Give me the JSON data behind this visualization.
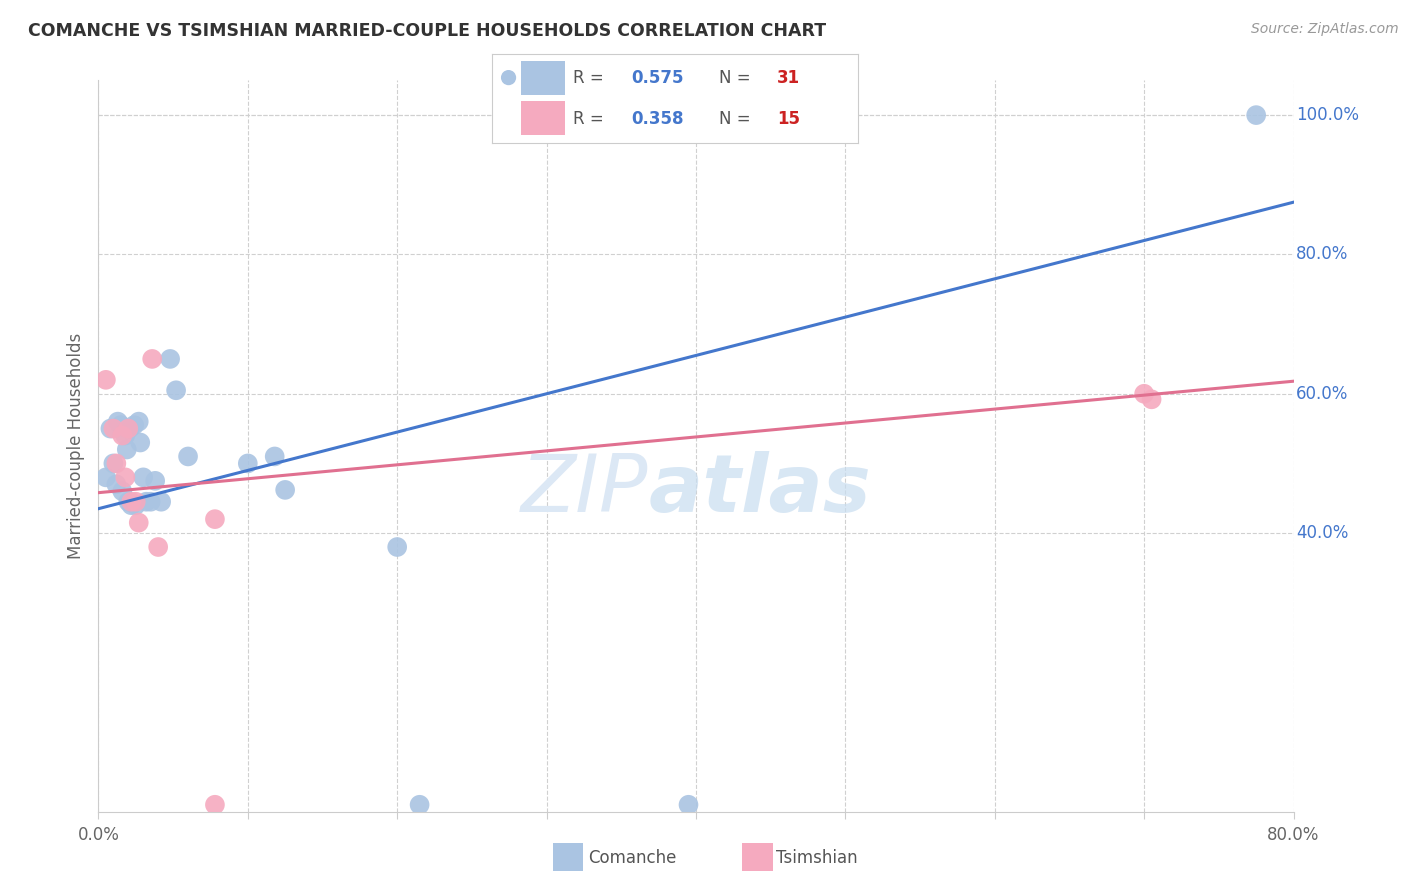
{
  "title": "COMANCHE VS TSIMSHIAN MARRIED-COUPLE HOUSEHOLDS CORRELATION CHART",
  "source": "Source: ZipAtlas.com",
  "ylabel": "Married-couple Households",
  "watermark_zip": "ZIP",
  "watermark_atlas": "atlas",
  "xlim": [
    0.0,
    0.8
  ],
  "ylim": [
    0.0,
    1.05
  ],
  "xticks": [
    0.0,
    0.1,
    0.2,
    0.3,
    0.4,
    0.5,
    0.6,
    0.7,
    0.8
  ],
  "xtick_labels": [
    "0.0%",
    "",
    "",
    "",
    "",
    "",
    "",
    "",
    "80.0%"
  ],
  "ytick_labels_right": [
    "40.0%",
    "60.0%",
    "80.0%",
    "100.0%"
  ],
  "ytick_values_right": [
    0.4,
    0.6,
    0.8,
    1.0
  ],
  "comanche_R": "0.575",
  "comanche_N": "31",
  "tsimshian_R": "0.358",
  "tsimshian_N": "15",
  "comanche_color": "#aac4e2",
  "tsimshian_color": "#f5aabf",
  "comanche_line_color": "#4477cc",
  "tsimshian_line_color": "#e07090",
  "legend_color": "#4477cc",
  "legend_N_color": "#cc2222",
  "comanche_x": [
    0.005,
    0.008,
    0.01,
    0.012,
    0.013,
    0.015,
    0.016,
    0.018,
    0.019,
    0.02,
    0.021,
    0.022,
    0.024,
    0.025,
    0.027,
    0.028,
    0.03,
    0.032,
    0.035,
    0.038,
    0.042,
    0.048,
    0.052,
    0.06,
    0.1,
    0.118,
    0.125,
    0.2,
    0.215,
    0.395,
    0.775
  ],
  "comanche_y": [
    0.48,
    0.55,
    0.5,
    0.47,
    0.56,
    0.555,
    0.46,
    0.54,
    0.52,
    0.445,
    0.55,
    0.44,
    0.555,
    0.44,
    0.56,
    0.53,
    0.48,
    0.445,
    0.445,
    0.475,
    0.445,
    0.65,
    0.605,
    0.51,
    0.5,
    0.51,
    0.462,
    0.38,
    0.01,
    0.01,
    1.0
  ],
  "tsimshian_x": [
    0.005,
    0.01,
    0.012,
    0.016,
    0.018,
    0.02,
    0.022,
    0.025,
    0.027,
    0.036,
    0.04,
    0.078,
    0.078,
    0.7,
    0.705
  ],
  "tsimshian_y": [
    0.62,
    0.55,
    0.5,
    0.54,
    0.48,
    0.55,
    0.445,
    0.445,
    0.415,
    0.65,
    0.38,
    0.01,
    0.42,
    0.6,
    0.592
  ],
  "blue_trend_x": [
    0.0,
    0.8
  ],
  "blue_trend_y": [
    0.435,
    0.875
  ],
  "pink_trend_x": [
    0.0,
    0.8
  ],
  "pink_trend_y": [
    0.458,
    0.618
  ],
  "background_color": "#ffffff",
  "grid_color": "#d0d0d0"
}
